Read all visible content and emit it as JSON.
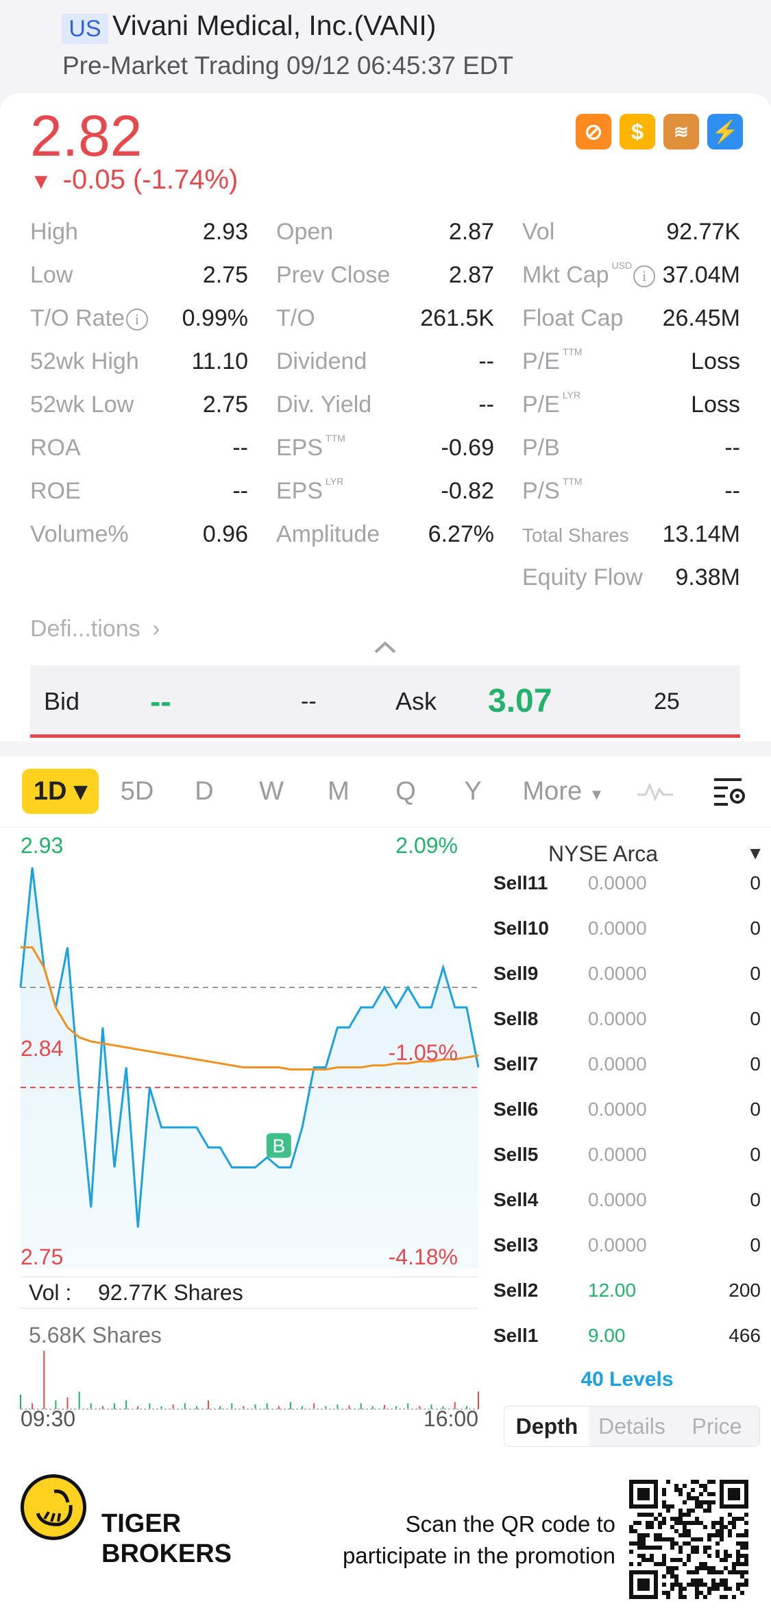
{
  "header": {
    "market": "US",
    "stock_name": "Vivani Medical, Inc.(VANI)",
    "trading_status": "Pre-Market Trading 09/12 06:45:37 EDT"
  },
  "quote": {
    "price": "2.82",
    "change": "-0.05 (-1.74%)",
    "change_direction": "down"
  },
  "stats": {
    "col1": [
      {
        "label": "High",
        "value": "2.93"
      },
      {
        "label": "Low",
        "value": "2.75"
      },
      {
        "label": "T/O Rate",
        "value": "0.99%"
      },
      {
        "label": "52wk High",
        "value": "11.10"
      },
      {
        "label": "52wk Low",
        "value": "2.75"
      },
      {
        "label": "ROA",
        "value": "--"
      },
      {
        "label": "ROE",
        "value": "--"
      },
      {
        "label": "Volume%",
        "value": "0.96"
      }
    ],
    "col2": [
      {
        "label": "Open",
        "value": "2.87"
      },
      {
        "label": "Prev Close",
        "value": "2.87"
      },
      {
        "label": "T/O",
        "value": "261.5K"
      },
      {
        "label": "Dividend",
        "value": "--"
      },
      {
        "label": "Div. Yield",
        "value": "--"
      },
      {
        "label": "EPS",
        "sup": "TTM",
        "value": "-0.69"
      },
      {
        "label": "EPS",
        "sup": "LYR",
        "value": "-0.82"
      },
      {
        "label": "Amplitude",
        "value": "6.27%"
      }
    ],
    "col3": [
      {
        "label": "Vol",
        "value": "92.77K"
      },
      {
        "label": "Mkt Cap",
        "sup": "USD",
        "value": "37.04M"
      },
      {
        "label": "Float Cap",
        "value": "26.45M"
      },
      {
        "label": "P/E",
        "sup": "TTM",
        "value": "Loss"
      },
      {
        "label": "P/E",
        "sup": "LYR",
        "value": "Loss"
      },
      {
        "label": "P/B",
        "value": "--"
      },
      {
        "label": "P/S",
        "sup": "TTM",
        "value": "--"
      },
      {
        "label": "Total Shares",
        "value": "13.14M"
      },
      {
        "label": "Equity Flow",
        "value": "9.38M"
      }
    ],
    "definitions_link": "Defi...tions"
  },
  "bidask": {
    "bid_label": "Bid",
    "bid_price": "--",
    "bid_size": "--",
    "ask_label": "Ask",
    "ask_price": "3.07",
    "ask_size": "25"
  },
  "period_tabs": [
    "1D",
    "5D",
    "D",
    "W",
    "M",
    "Q",
    "Y",
    "More"
  ],
  "chart_labels": {
    "price_high": "2.93",
    "pct_high": "2.09%",
    "price_mid": "2.84",
    "pct_mid": "-1.05%",
    "price_low": "2.75",
    "pct_low": "-4.18%",
    "vol_label": "Vol :",
    "vol_value": "92.77K Shares",
    "vol_max": "5.68K Shares",
    "time_start": "09:30",
    "time_end": "16:00",
    "marker": "B"
  },
  "chart_data": {
    "type": "line",
    "y_range": [
      2.75,
      2.93
    ],
    "x_range": [
      "09:30",
      "16:00"
    ],
    "series": [
      {
        "color": "#1aa1df",
        "values": [
          2.87,
          2.93,
          2.88,
          2.86,
          2.89,
          2.82,
          2.76,
          2.85,
          2.78,
          2.83,
          2.75,
          2.82,
          2.8,
          2.8,
          2.8,
          2.8,
          2.79,
          2.79,
          2.78,
          2.78,
          2.78,
          2.785,
          2.78,
          2.78,
          2.8,
          2.83,
          2.83,
          2.85,
          2.85,
          2.86,
          2.86,
          2.87,
          2.86,
          2.87,
          2.86,
          2.86,
          2.88,
          2.86,
          2.86,
          2.83
        ]
      },
      {
        "color": "#f0901e",
        "values": [
          2.89,
          2.89,
          2.88,
          2.86,
          2.85,
          2.845,
          2.843,
          2.842,
          2.841,
          2.84,
          2.839,
          2.838,
          2.837,
          2.836,
          2.835,
          2.834,
          2.833,
          2.832,
          2.831,
          2.83,
          2.83,
          2.83,
          2.83,
          2.829,
          2.829,
          2.829,
          2.829,
          2.83,
          2.83,
          2.83,
          2.831,
          2.831,
          2.832,
          2.832,
          2.833,
          2.833,
          2.834,
          2.834,
          2.835,
          2.836
        ]
      }
    ],
    "prev_close": 2.87,
    "volume_bars": [
      0.25,
      0.1,
      1.0,
      0.15,
      0.2,
      0.3,
      0.1,
      0.05,
      0.1,
      0.15,
      0.05,
      0.1,
      0.05,
      0.08,
      0.1,
      0.05,
      0.15,
      0.05,
      0.1,
      0.05,
      0.08,
      0.1,
      0.05,
      0.12,
      0.05,
      0.1,
      0.05,
      0.08,
      0.06,
      0.1,
      0.05,
      0.07,
      0.05,
      0.1,
      0.05,
      0.08,
      0.05,
      0.12,
      0.05,
      0.3
    ]
  },
  "order_book": {
    "exchange": "NYSE Arca",
    "rows": [
      {
        "level": "Sell11",
        "price": "0.0000",
        "qty": "0"
      },
      {
        "level": "Sell10",
        "price": "0.0000",
        "qty": "0"
      },
      {
        "level": "Sell9",
        "price": "0.0000",
        "qty": "0"
      },
      {
        "level": "Sell8",
        "price": "0.0000",
        "qty": "0"
      },
      {
        "level": "Sell7",
        "price": "0.0000",
        "qty": "0"
      },
      {
        "level": "Sell6",
        "price": "0.0000",
        "qty": "0"
      },
      {
        "level": "Sell5",
        "price": "0.0000",
        "qty": "0"
      },
      {
        "level": "Sell4",
        "price": "0.0000",
        "qty": "0"
      },
      {
        "level": "Sell3",
        "price": "0.0000",
        "qty": "0"
      },
      {
        "level": "Sell2",
        "price": "12.00",
        "qty": "200"
      },
      {
        "level": "Sell1",
        "price": "9.00",
        "qty": "466"
      }
    ],
    "levels_link": "40 Levels",
    "tabs": [
      "Depth",
      "Details",
      "Price"
    ]
  },
  "footer": {
    "brand_line1": "TIGER",
    "brand_line2": "BROKERS",
    "promo_line1": "Scan the QR code to",
    "promo_line2": "participate in the promotion"
  },
  "colors": {
    "up": "#23b26b",
    "down": "#e5484d",
    "accent": "#ffd21f",
    "link": "#1aa1df"
  }
}
